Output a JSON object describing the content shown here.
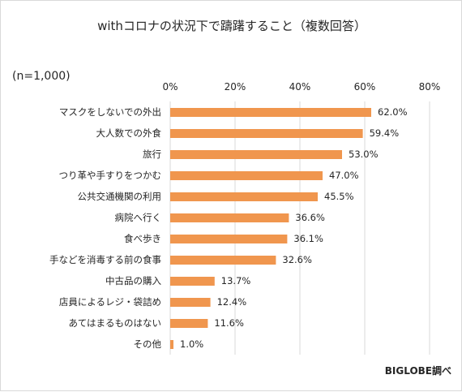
{
  "chart_data": {
    "type": "bar",
    "orientation": "horizontal",
    "title": "withコロナの状況下で躊躇すること（複数回答）",
    "note": "(n=1,000)",
    "source": "BIGLOBE調べ",
    "xlim": [
      0,
      80
    ],
    "xticks": [
      0,
      20,
      40,
      60,
      80
    ],
    "tick_suffix": "%",
    "grid": true,
    "bar_color": "#f0964e",
    "grid_color": "#d9d9d9",
    "categories": [
      "マスクをしないでの外出",
      "大人数での外食",
      "旅行",
      "つり革や手すりをつかむ",
      "公共交通機関の利用",
      "病院へ行く",
      "食べ歩き",
      "手などを消毒する前の食事",
      "中古品の購入",
      "店員によるレジ・袋詰め",
      "あてはまるものはない",
      "その他"
    ],
    "values": [
      62.0,
      59.4,
      53.0,
      47.0,
      45.5,
      36.6,
      36.1,
      32.6,
      13.7,
      12.4,
      11.6,
      1.0
    ]
  }
}
